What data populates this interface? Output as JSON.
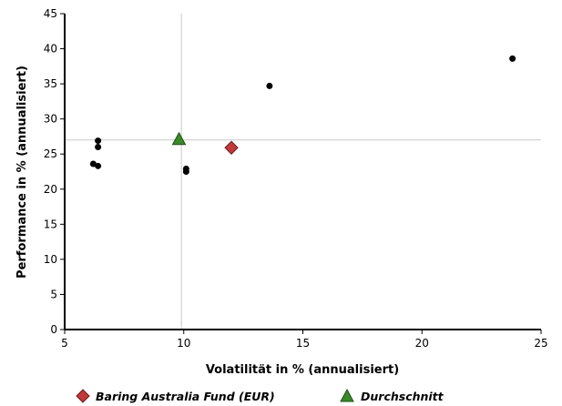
{
  "chart_data": {
    "type": "scatter",
    "xlabel": "Volatilität in % (annualisiert)",
    "ylabel": "Performance in % (annualisiert)",
    "xlim": [
      5,
      25
    ],
    "ylim": [
      0,
      45
    ],
    "x_ticks": [
      5,
      10,
      15,
      20,
      25
    ],
    "y_ticks": [
      0,
      5,
      10,
      15,
      20,
      25,
      30,
      35,
      40,
      45
    ],
    "grid": false,
    "reference_lines": {
      "x": 9.9,
      "y": 27.0
    },
    "legend_position": "bottom",
    "series": [
      {
        "role": "peers",
        "color": "#000000",
        "marker": "circle",
        "points": [
          {
            "x": 6.2,
            "y": 23.6
          },
          {
            "x": 6.4,
            "y": 23.3
          },
          {
            "x": 6.4,
            "y": 26.9
          },
          {
            "x": 6.4,
            "y": 26.0
          },
          {
            "x": 10.1,
            "y": 22.9
          },
          {
            "x": 10.1,
            "y": 22.5
          },
          {
            "x": 13.6,
            "y": 34.7
          },
          {
            "x": 23.8,
            "y": 38.6
          }
        ]
      },
      {
        "name": "Baring Australia Fund (EUR)",
        "color": "#c0393b",
        "marker": "diamond",
        "points": [
          {
            "x": 12.0,
            "y": 25.9
          }
        ]
      },
      {
        "name": "Durchschnitt",
        "color": "#3a8a2a",
        "marker": "triangle",
        "points": [
          {
            "x": 9.8,
            "y": 27.0
          }
        ]
      }
    ]
  }
}
